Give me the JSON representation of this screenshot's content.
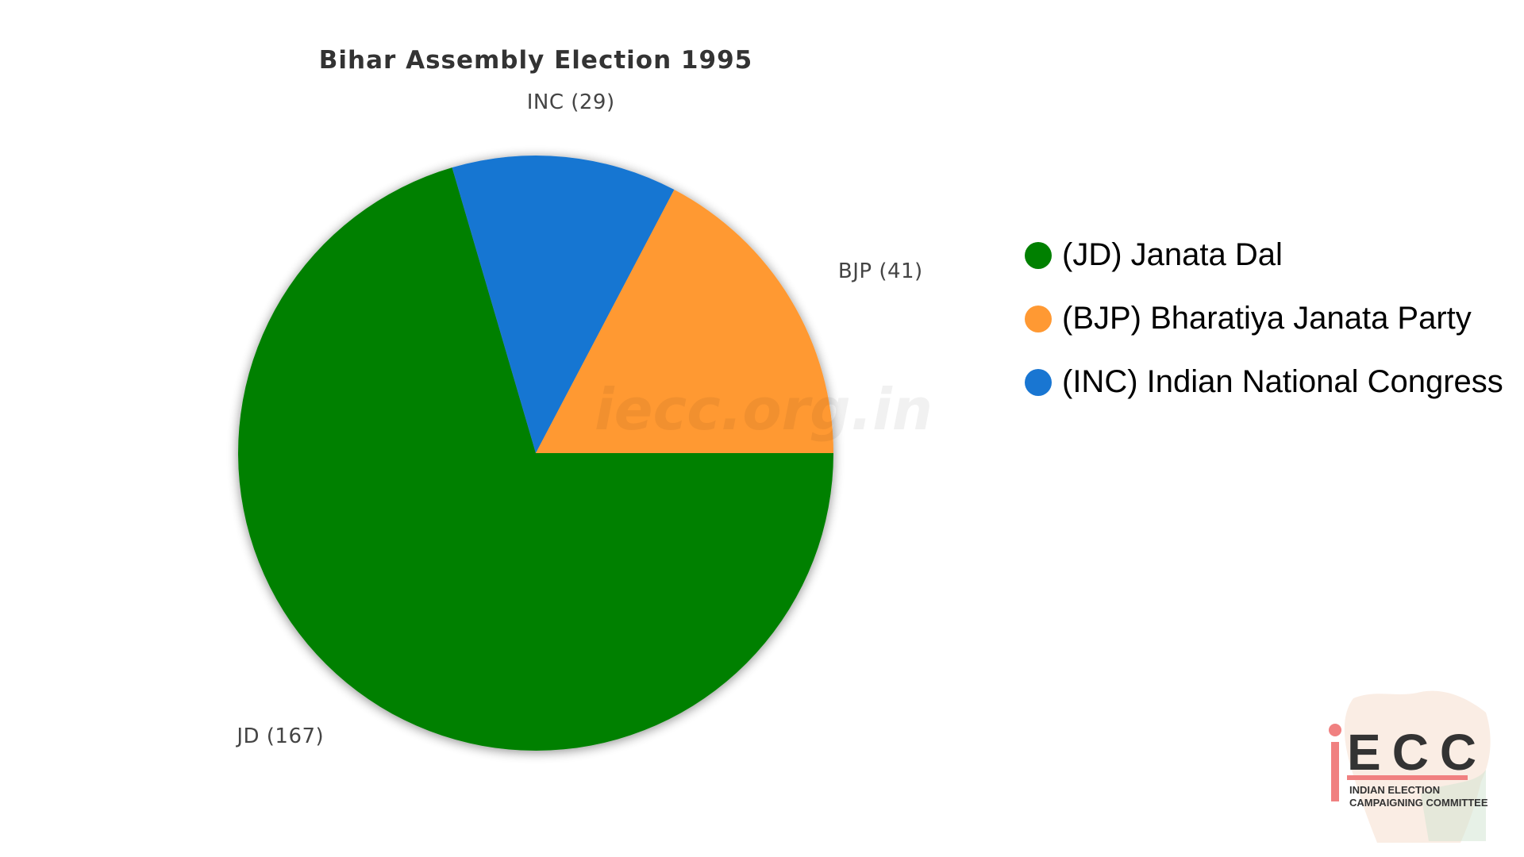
{
  "chart_data": {
    "type": "pie",
    "title": "Bihar Assembly Election 1995",
    "slices": [
      {
        "key": "JD",
        "label": "JD (167)",
        "value": 167,
        "color": "#008000",
        "legend": "(JD) Janata Dal"
      },
      {
        "key": "INC",
        "label": "INC (29)",
        "value": 29,
        "color": "#1976D2",
        "legend": "(INC) Indian National Congress"
      },
      {
        "key": "BJP",
        "label": "BJP (41)",
        "value": 41,
        "color": "#FF9933",
        "legend": "(BJP) Bharatiya Janata Party"
      }
    ],
    "legend_order": [
      "JD",
      "BJP",
      "INC"
    ],
    "legend_position": "right",
    "watermark": "iecc.org.in"
  },
  "logo": {
    "letters": "iECC",
    "line1": "INDIAN ELECTION",
    "line2": "CAMPAIGNING COMMITTEE"
  }
}
